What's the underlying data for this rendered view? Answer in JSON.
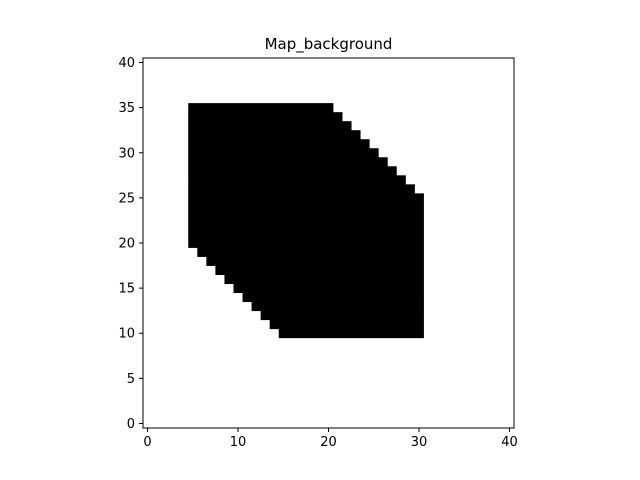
{
  "chart_data": {
    "type": "heatmap",
    "title": "Map_background",
    "xlabel": "",
    "ylabel": "",
    "xlim": [
      -0.5,
      40.5
    ],
    "ylim": [
      -0.5,
      40.5
    ],
    "x_ticks": [
      0,
      10,
      20,
      30,
      40
    ],
    "y_ticks": [
      0,
      5,
      10,
      15,
      20,
      25,
      30,
      35,
      40
    ],
    "grid": "off",
    "colors": {
      "filled": "#000000",
      "empty": "#ffffff"
    },
    "filled_rows": [
      {
        "y": 10,
        "x_start": 15,
        "x_end": 30
      },
      {
        "y": 11,
        "x_start": 14,
        "x_end": 30
      },
      {
        "y": 12,
        "x_start": 13,
        "x_end": 30
      },
      {
        "y": 13,
        "x_start": 12,
        "x_end": 30
      },
      {
        "y": 14,
        "x_start": 11,
        "x_end": 30
      },
      {
        "y": 15,
        "x_start": 10,
        "x_end": 30
      },
      {
        "y": 16,
        "x_start": 9,
        "x_end": 30
      },
      {
        "y": 17,
        "x_start": 8,
        "x_end": 30
      },
      {
        "y": 18,
        "x_start": 7,
        "x_end": 30
      },
      {
        "y": 19,
        "x_start": 6,
        "x_end": 30
      },
      {
        "y": 20,
        "x_start": 5,
        "x_end": 30
      },
      {
        "y": 21,
        "x_start": 5,
        "x_end": 30
      },
      {
        "y": 22,
        "x_start": 5,
        "x_end": 30
      },
      {
        "y": 23,
        "x_start": 5,
        "x_end": 30
      },
      {
        "y": 24,
        "x_start": 5,
        "x_end": 30
      },
      {
        "y": 25,
        "x_start": 5,
        "x_end": 30
      },
      {
        "y": 26,
        "x_start": 5,
        "x_end": 29
      },
      {
        "y": 27,
        "x_start": 5,
        "x_end": 28
      },
      {
        "y": 28,
        "x_start": 5,
        "x_end": 27
      },
      {
        "y": 29,
        "x_start": 5,
        "x_end": 26
      },
      {
        "y": 30,
        "x_start": 5,
        "x_end": 25
      },
      {
        "y": 31,
        "x_start": 5,
        "x_end": 24
      },
      {
        "y": 32,
        "x_start": 5,
        "x_end": 23
      },
      {
        "y": 33,
        "x_start": 5,
        "x_end": 22
      },
      {
        "y": 34,
        "x_start": 5,
        "x_end": 21
      },
      {
        "y": 35,
        "x_start": 5,
        "x_end": 20
      }
    ]
  }
}
